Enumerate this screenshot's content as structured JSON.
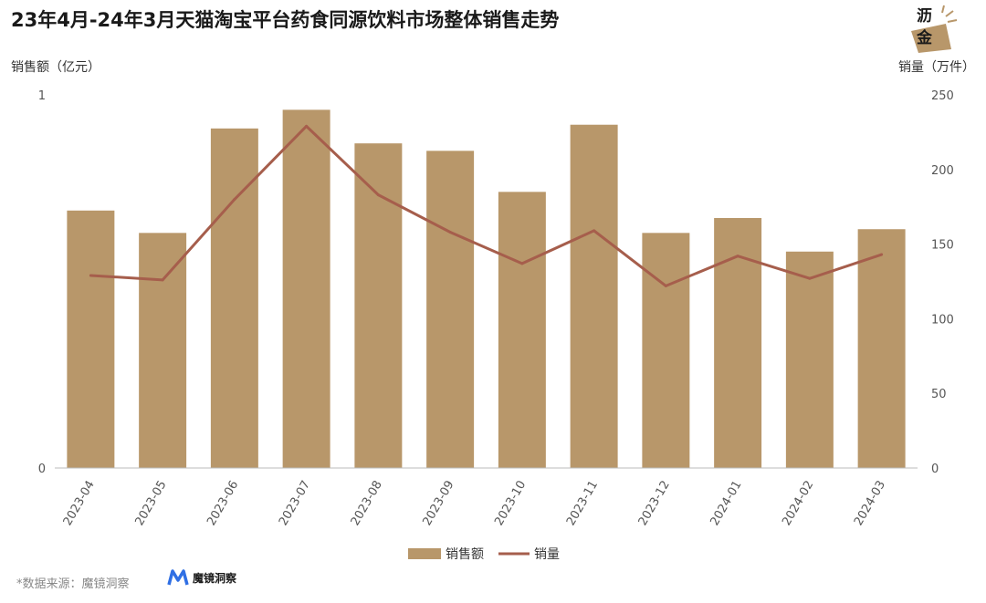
{
  "header": {
    "title": "23年4月-24年3月天猫淘宝平台药食同源饮料市场整体销售走势"
  },
  "logo": {
    "line1": "沥",
    "line2": "金"
  },
  "source": {
    "text": "*数据来源：魔镜洞察"
  },
  "brand": {
    "name": "魔镜洞察",
    "icon": "m-logo-icon"
  },
  "colors": {
    "bar": "#B8976A",
    "line": "#A65E4C",
    "axis": "#BBBBBB",
    "text": "#555555"
  },
  "chart_data": {
    "type": "bar+line",
    "categories": [
      "2023-04",
      "2023-05",
      "2023-06",
      "2023-07",
      "2023-08",
      "2023-09",
      "2023-10",
      "2023-11",
      "2023-12",
      "2024-01",
      "2024-02",
      "2024-03"
    ],
    "ylabel_left": "销售额（亿元）",
    "ylabel_right": "销量（万件）",
    "ylim_left": [
      0,
      1
    ],
    "yticks_left": [
      "0",
      "1"
    ],
    "ylim_right": [
      0,
      250
    ],
    "yticks_right": [
      0,
      50,
      100,
      150,
      200,
      250
    ],
    "legend_position": "bottom-center",
    "grid": false,
    "series": [
      {
        "name": "销售额",
        "type": "bar",
        "axis": "left",
        "values": [
          0.69,
          0.63,
          0.91,
          0.96,
          0.87,
          0.85,
          0.74,
          0.92,
          0.63,
          0.67,
          0.58,
          0.64
        ]
      },
      {
        "name": "销量",
        "type": "line",
        "axis": "right",
        "values": [
          129,
          126,
          180,
          229,
          183,
          158,
          137,
          159,
          122,
          142,
          127,
          143
        ]
      }
    ]
  }
}
